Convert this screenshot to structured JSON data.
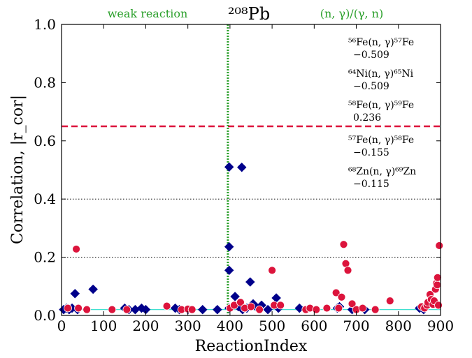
{
  "chart_data": {
    "type": "scatter",
    "title": "²⁰⁸Pb",
    "xlabel": "ReactionIndex",
    "ylabel": "Correlation, |r_cor|",
    "xlim": [
      0,
      900
    ],
    "ylim": [
      0.0,
      1.0
    ],
    "xticks": [
      "0",
      "100",
      "200",
      "300",
      "400",
      "500",
      "600",
      "700",
      "800",
      "900"
    ],
    "yticks": [
      "0.0",
      "0.2",
      "0.4",
      "0.6",
      "0.8",
      "1.0"
    ],
    "region_labels": {
      "left": "weak reaction",
      "right": "(n, γ)/(γ, n)"
    },
    "threshold": 0.65,
    "region_divider_x": 395,
    "dotted_gridlines_y": [
      0.2,
      0.4
    ],
    "annotations": [
      {
        "reaction": "⁵⁶Fe(n, γ)⁵⁷Fe",
        "value": "−0.509"
      },
      {
        "reaction": "⁶⁴Ni(n, γ)⁶⁵Ni",
        "value": "−0.509"
      },
      {
        "reaction": "⁵⁸Fe(n, γ)⁵⁹Fe",
        "value": "0.236"
      },
      {
        "reaction": "⁵⁷Fe(n, γ)⁵⁸Fe",
        "value": "−0.155"
      },
      {
        "reaction": "⁶⁸Zn(n, γ)⁶⁹Zn",
        "value": "−0.115"
      }
    ],
    "colors": {
      "diamonds": "#00008b",
      "circles": "#dc143c",
      "threshold": "#dc143c",
      "divider": "#2ca02c",
      "baseline": "#40e0d0"
    },
    "series": [
      {
        "marker": "diamond",
        "x": [
          5,
          12,
          18,
          25,
          32,
          38,
          75,
          150,
          160,
          175,
          190,
          200,
          270,
          280,
          300,
          335,
          370,
          398,
          398,
          398,
          398,
          412,
          420,
          430,
          440,
          448,
          455,
          465,
          475,
          490,
          510,
          515,
          565,
          655,
          660,
          690,
          720,
          850,
          860
        ],
        "y": [
          0.02,
          0.025,
          0.02,
          0.025,
          0.075,
          0.02,
          0.09,
          0.025,
          0.02,
          0.02,
          0.025,
          0.02,
          0.025,
          0.02,
          0.02,
          0.02,
          0.02,
          0.51,
          0.236,
          0.155,
          0.025,
          0.065,
          0.03,
          0.02,
          0.025,
          0.115,
          0.04,
          0.025,
          0.035,
          0.02,
          0.06,
          0.025,
          0.025,
          0.025,
          0.03,
          0.02,
          0.02,
          0.025,
          0.02
        ]
      },
      {
        "marker": "diamond",
        "x": [
          428
        ],
        "y": [
          0.509
        ]
      },
      {
        "marker": "circle",
        "x": [
          15,
          35,
          40,
          60,
          120,
          155,
          250,
          285,
          300,
          310,
          400,
          410,
          425,
          435,
          450,
          470,
          500,
          505,
          520,
          580,
          590,
          605,
          630,
          652,
          658,
          665,
          670,
          675,
          680,
          690,
          700,
          715,
          745,
          780,
          855,
          862,
          868,
          870,
          875,
          878,
          882,
          885,
          888,
          890,
          892,
          893,
          895,
          897
        ],
        "y": [
          0.025,
          0.228,
          0.025,
          0.02,
          0.02,
          0.02,
          0.032,
          0.02,
          0.022,
          0.02,
          0.025,
          0.035,
          0.045,
          0.025,
          0.03,
          0.02,
          0.155,
          0.035,
          0.035,
          0.02,
          0.025,
          0.02,
          0.025,
          0.078,
          0.025,
          0.063,
          0.244,
          0.178,
          0.155,
          0.04,
          0.02,
          0.025,
          0.02,
          0.05,
          0.03,
          0.025,
          0.035,
          0.045,
          0.072,
          0.055,
          0.038,
          0.05,
          0.09,
          0.11,
          0.105,
          0.13,
          0.035,
          0.24
        ]
      }
    ]
  }
}
